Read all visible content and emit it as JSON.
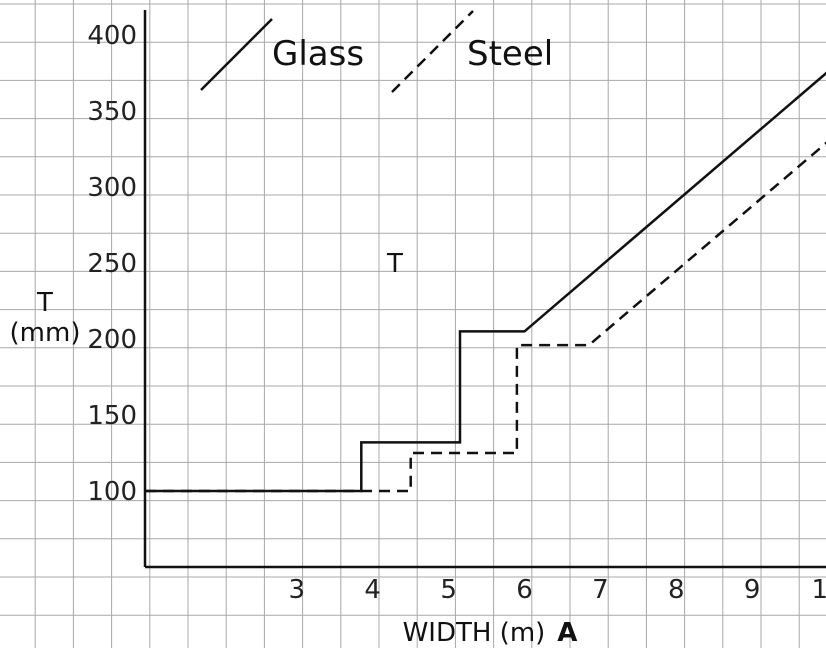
{
  "chart_data": {
    "type": "line",
    "xlabel": "WIDTH (m)",
    "xlabel_suffix": "A",
    "ylabel_line1": "T",
    "ylabel_line2": "(mm)",
    "inner_label": "T",
    "xlim": [
      1.0,
      11.0
    ],
    "ylim": [
      50,
      420
    ],
    "x_ticks": [
      3,
      4,
      5,
      6,
      7,
      8,
      9,
      10
    ],
    "x_tick_labels": [
      "3",
      "4",
      "5",
      "6",
      "7",
      "8",
      "9",
      "10"
    ],
    "y_ticks": [
      100,
      150,
      200,
      250,
      300,
      350,
      400
    ],
    "y_tick_labels": [
      "100",
      "150",
      "200",
      "250",
      "300",
      "350",
      "400"
    ],
    "grid": true,
    "legend_position": "top",
    "series": [
      {
        "name": "Glass",
        "style": "solid",
        "color": "#111111",
        "x": [
          1.0,
          3.85,
          3.85,
          5.15,
          5.15,
          6.0,
          10.0
        ],
        "y": [
          100,
          100,
          132,
          132,
          205,
          205,
          376
        ]
      },
      {
        "name": "Steel",
        "style": "dashed",
        "color": "#111111",
        "x": [
          1.0,
          4.0,
          4.5,
          4.5,
          5.9,
          5.9,
          6.85,
          10.0
        ],
        "y": [
          100,
          100,
          100,
          125,
          125,
          196,
          196,
          330
        ]
      }
    ]
  }
}
